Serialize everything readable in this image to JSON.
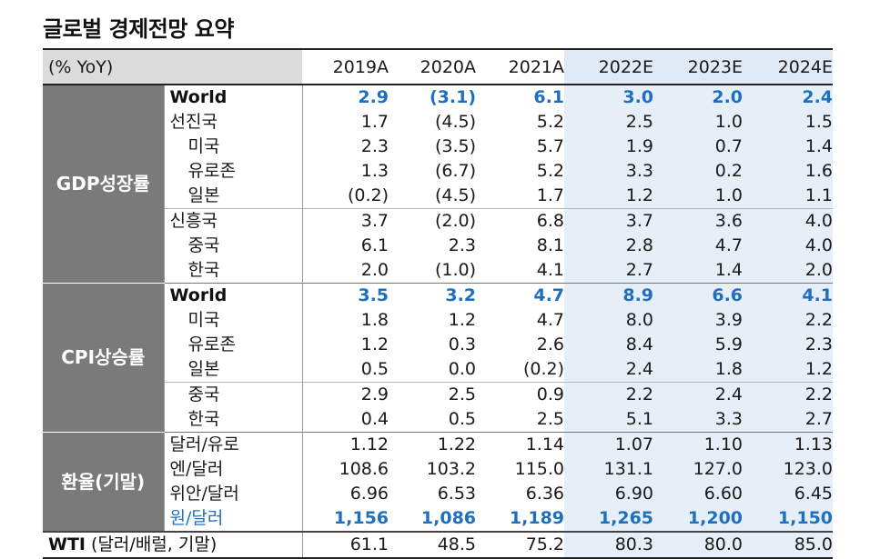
{
  "title": "글로벌 경제전망 요약",
  "header": {
    "unit_label": "(% YoY)",
    "years": [
      "2019A",
      "2020A",
      "2021A",
      "2022E",
      "2023E",
      "2024E"
    ]
  },
  "colors": {
    "highlight_text": "#1f6fc0",
    "group_cell_bg": "#7a7a7a",
    "estimate_bg": "#e6eff8",
    "header_label_bg": "#dcdcdc"
  },
  "gdp": {
    "group_label": "GDP성장률",
    "rows": [
      {
        "name": "World",
        "values": [
          "2.9",
          "(3.1)",
          "6.1",
          "3.0",
          "2.0",
          "2.4"
        ]
      },
      {
        "name": "선진국",
        "values": [
          "1.7",
          "(4.5)",
          "5.2",
          "2.5",
          "1.0",
          "1.5"
        ]
      },
      {
        "name": "미국",
        "values": [
          "2.3",
          "(3.5)",
          "5.7",
          "1.9",
          "0.7",
          "1.4"
        ]
      },
      {
        "name": "유로존",
        "values": [
          "1.3",
          "(6.7)",
          "5.2",
          "3.3",
          "0.2",
          "1.6"
        ]
      },
      {
        "name": "일본",
        "values": [
          "(0.2)",
          "(4.5)",
          "1.7",
          "1.2",
          "1.0",
          "1.1"
        ]
      },
      {
        "name": "신흥국",
        "values": [
          "3.7",
          "(2.0)",
          "6.8",
          "3.7",
          "3.6",
          "4.0"
        ]
      },
      {
        "name": "중국",
        "values": [
          "6.1",
          "2.3",
          "8.1",
          "2.8",
          "4.7",
          "4.0"
        ]
      },
      {
        "name": "한국",
        "values": [
          "2.0",
          "(1.0)",
          "4.1",
          "2.7",
          "1.4",
          "2.0"
        ]
      }
    ]
  },
  "cpi": {
    "group_label": "CPI상승률",
    "rows": [
      {
        "name": "World",
        "values": [
          "3.5",
          "3.2",
          "4.7",
          "8.9",
          "6.6",
          "4.1"
        ]
      },
      {
        "name": "미국",
        "values": [
          "1.8",
          "1.2",
          "4.7",
          "8.0",
          "3.9",
          "2.2"
        ]
      },
      {
        "name": "유로존",
        "values": [
          "1.2",
          "0.3",
          "2.6",
          "8.4",
          "5.9",
          "2.3"
        ]
      },
      {
        "name": "일본",
        "values": [
          "0.5",
          "0.0",
          "(0.2)",
          "2.4",
          "1.8",
          "1.2"
        ]
      },
      {
        "name": "중국",
        "values": [
          "2.9",
          "2.5",
          "0.9",
          "2.2",
          "2.4",
          "2.2"
        ]
      },
      {
        "name": "한국",
        "values": [
          "0.4",
          "0.5",
          "2.5",
          "5.1",
          "3.3",
          "2.7"
        ]
      }
    ]
  },
  "fx": {
    "group_label": "환율(기말)",
    "rows": [
      {
        "name": "달러/유로",
        "values": [
          "1.12",
          "1.22",
          "1.14",
          "1.07",
          "1.10",
          "1.13"
        ]
      },
      {
        "name": "엔/달러",
        "values": [
          "108.6",
          "103.2",
          "115.0",
          "131.1",
          "127.0",
          "123.0"
        ]
      },
      {
        "name": "위안/달러",
        "values": [
          "6.96",
          "6.53",
          "6.36",
          "6.90",
          "6.60",
          "6.45"
        ]
      },
      {
        "name": "원/달러",
        "values": [
          "1,156",
          "1,086",
          "1,189",
          "1,265",
          "1,200",
          "1,150"
        ]
      }
    ]
  },
  "wti": {
    "label_bold": "WTI",
    "label_rest": " (달러/배럴, 기말)",
    "values": [
      "61.1",
      "48.5",
      "75.2",
      "80.3",
      "80.0",
      "85.0"
    ]
  }
}
